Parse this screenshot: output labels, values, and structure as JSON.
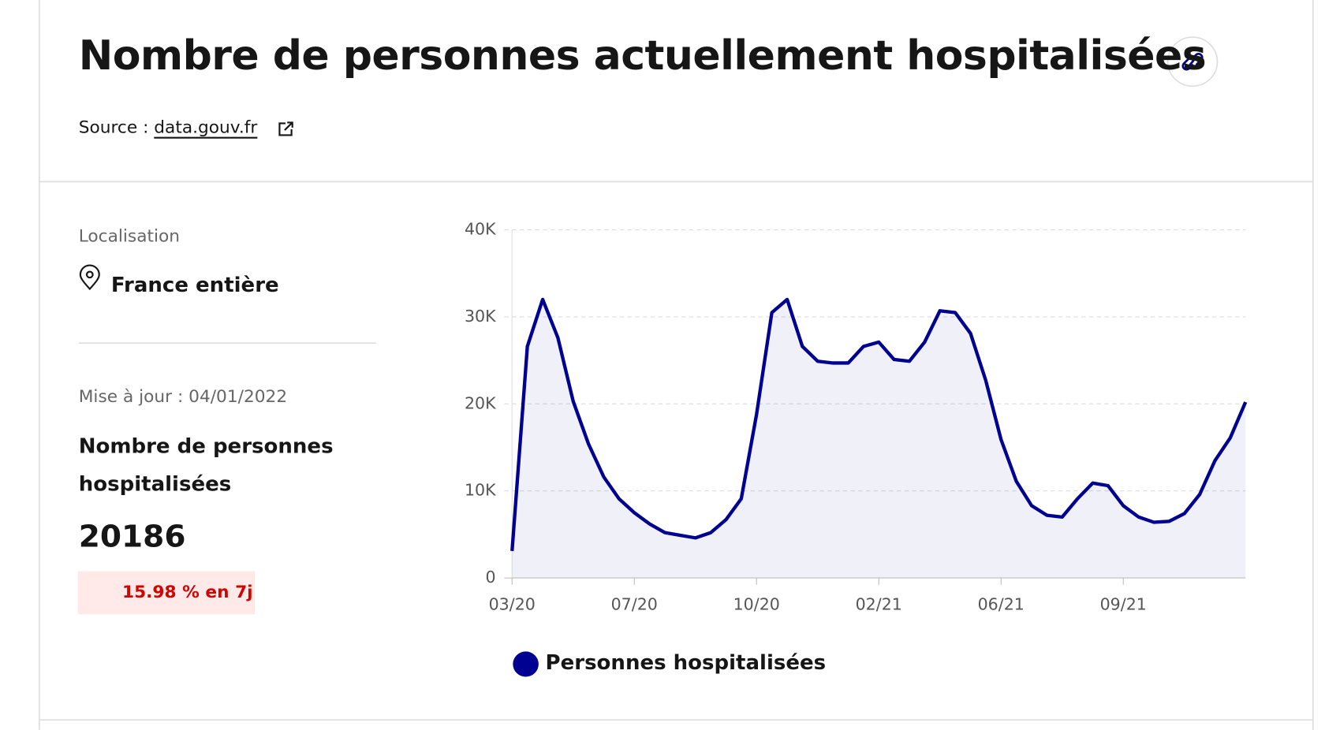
{
  "page": {
    "title": "Nombre de personnes actuellement hospitalisées",
    "source_label": "Source :",
    "source_link": "data.gouv.fr",
    "location_label": "Localisation",
    "location": "France entière",
    "update": "Mise à jour : 04/01/2022",
    "indicator_label": "Nombre de personnes hospitalisées",
    "indicator_value": 20186,
    "trend": "15.98 % en 7j"
  },
  "chart_data": {
    "type": "line",
    "categories": [
      "03/20",
      null,
      null,
      null,
      null,
      null,
      null,
      null,
      "07/20",
      null,
      null,
      null,
      null,
      null,
      null,
      null,
      "10/20",
      null,
      null,
      null,
      null,
      null,
      null,
      null,
      "02/21",
      null,
      null,
      null,
      null,
      null,
      null,
      null,
      "06/21",
      null,
      null,
      null,
      null,
      null,
      null,
      null,
      "09/21",
      null,
      null,
      null,
      null,
      null,
      null,
      null,
      null
    ],
    "series": [
      {
        "name": "Personnes hospitalisées",
        "color": "#000091",
        "values": [
          3.1,
          26.6,
          32,
          27.6,
          20.3,
          15.4,
          11.6,
          9.1,
          7.5,
          6.2,
          5.2,
          4.9,
          4.6,
          5.2,
          6.7,
          9.1,
          18.8,
          30.5,
          32,
          26.6,
          24.9,
          24.7,
          24.7,
          26.6,
          27.1,
          25.1,
          24.9,
          27.1,
          30.7,
          30.5,
          28.1,
          22.7,
          15.9,
          11.1,
          8.3,
          7.2,
          7.0,
          9.1,
          10.9,
          10.6,
          8.3,
          7.0,
          6.4,
          6.5,
          7.4,
          9.6,
          13.5,
          16.1,
          20.2
        ]
      }
    ],
    "ylim": [
      0,
      40
    ],
    "yticks": [
      0,
      {
        "value": 10,
        "label": "10K"
      },
      {
        "value": 20,
        "label": "20K"
      },
      {
        "value": 30,
        "label": "30K"
      },
      {
        "value": 40,
        "label": "40K"
      }
    ],
    "grid": true
  }
}
